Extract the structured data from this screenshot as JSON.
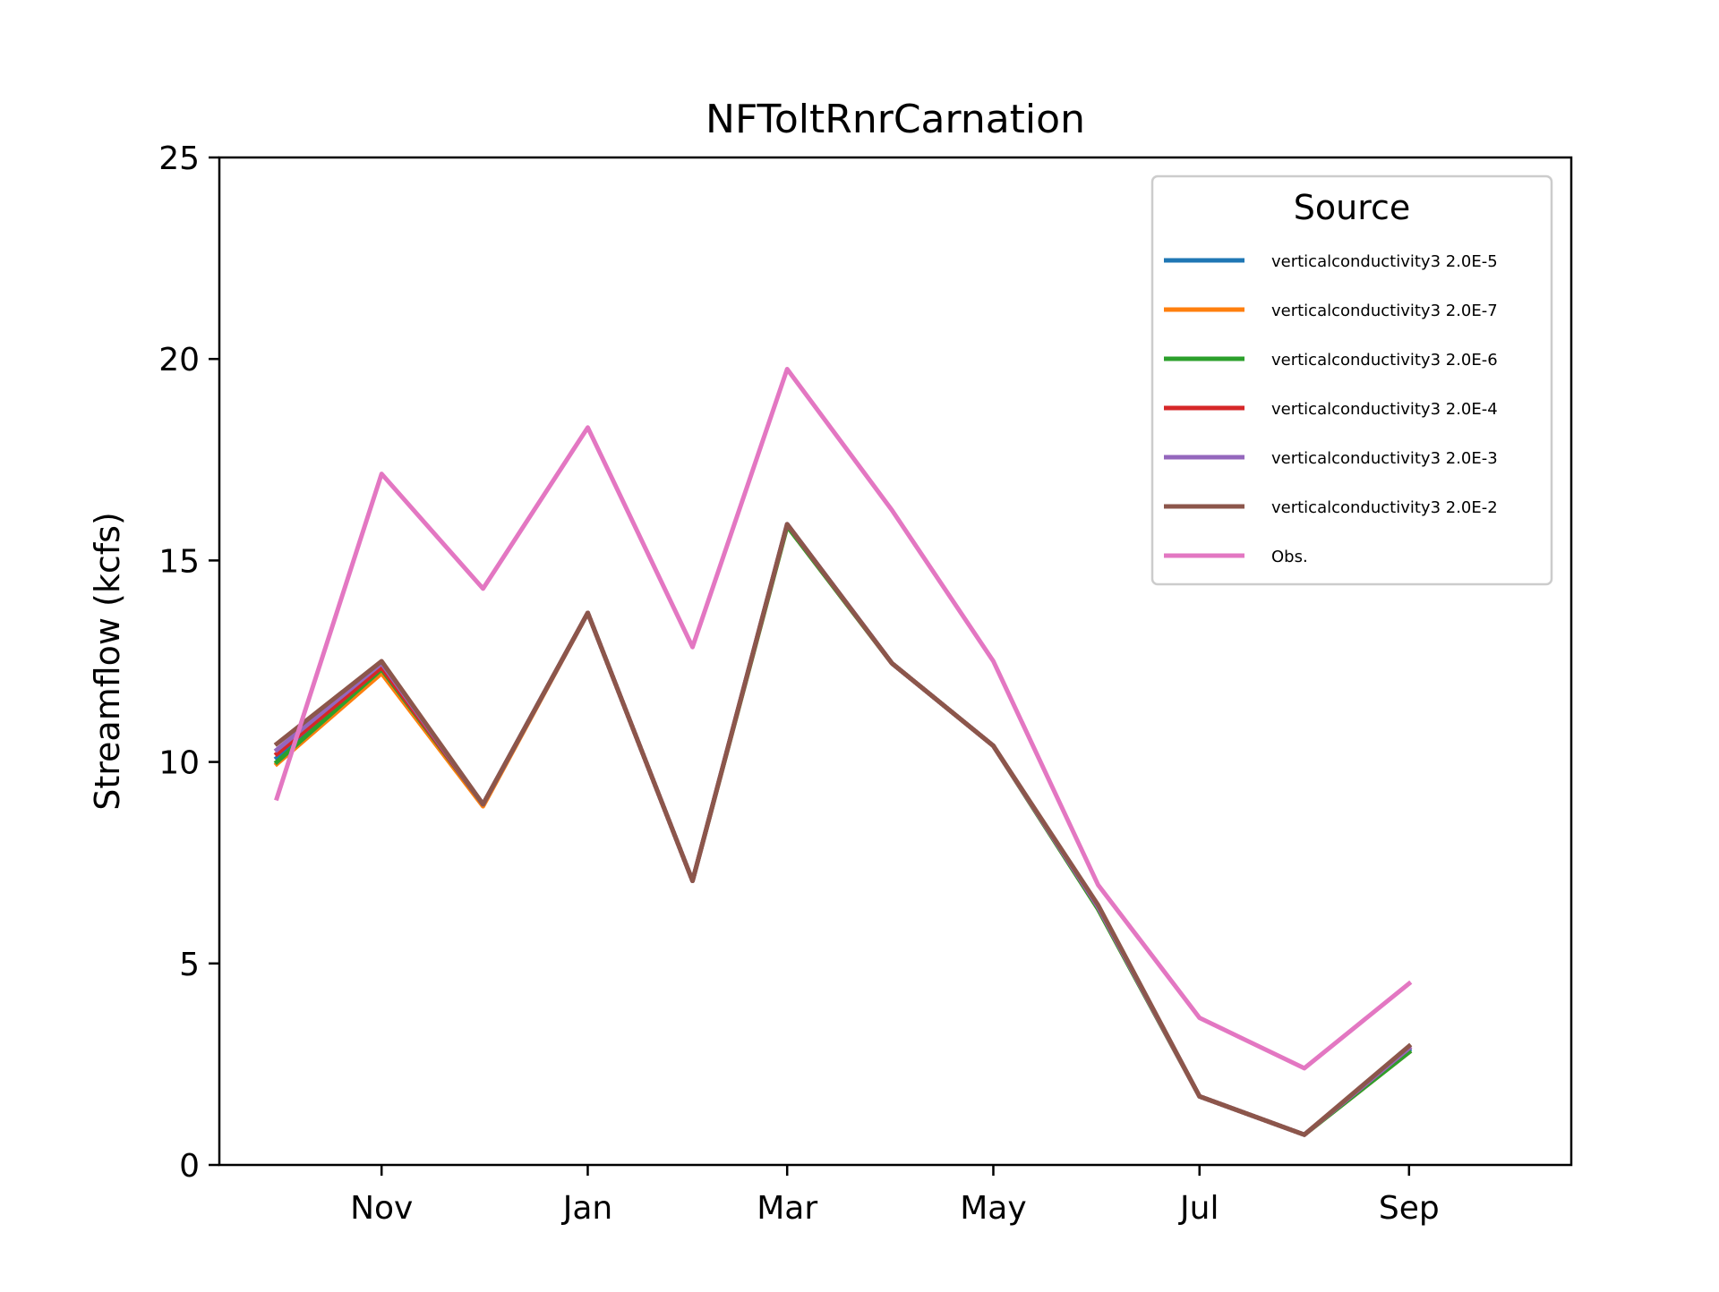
{
  "chart_data": {
    "type": "line",
    "title": "NFToltRnrCarnation",
    "xlabel": "",
    "ylabel": "Streamflow (kcfs)",
    "ylim": [
      0,
      25
    ],
    "yticks": [
      0,
      5,
      10,
      15,
      20,
      25
    ],
    "xlim": [
      "2000-09-14",
      "2001-10-19"
    ],
    "xticks": [
      {
        "label": "Nov",
        "date": "2000-11-01"
      },
      {
        "label": "Jan",
        "date": "2001-01-01"
      },
      {
        "label": "Mar",
        "date": "2001-03-01"
      },
      {
        "label": "May",
        "date": "2001-05-01"
      },
      {
        "label": "Jul",
        "date": "2001-07-01"
      },
      {
        "label": "Sep",
        "date": "2001-09-01"
      }
    ],
    "x": [
      "2000-10-01",
      "2000-11-01",
      "2000-12-01",
      "2001-01-01",
      "2001-02-01",
      "2001-03-01",
      "2001-04-01",
      "2001-05-01",
      "2001-06-01",
      "2001-07-01",
      "2001-08-01",
      "2001-09-01"
    ],
    "grid": false,
    "legend": {
      "title": "Source",
      "position": "top-right"
    },
    "series": [
      {
        "name": "verticalconductivity3 2.0E-5",
        "color": "#1f77b4",
        "values": [
          10.1,
          12.3,
          8.95,
          13.7,
          7.05,
          15.9,
          12.45,
          10.4,
          6.4,
          1.7,
          0.75,
          2.85
        ]
      },
      {
        "name": "verticalconductivity3 2.0E-7",
        "color": "#ff7f0e",
        "values": [
          9.95,
          12.2,
          8.9,
          13.7,
          7.05,
          15.85,
          12.45,
          10.4,
          6.35,
          1.7,
          0.75,
          2.8
        ]
      },
      {
        "name": "verticalconductivity3 2.0E-6",
        "color": "#2ca02c",
        "values": [
          10.0,
          12.3,
          8.95,
          13.7,
          7.05,
          15.85,
          12.45,
          10.4,
          6.35,
          1.7,
          0.75,
          2.8
        ]
      },
      {
        "name": "verticalconductivity3 2.0E-4",
        "color": "#d62728",
        "values": [
          10.2,
          12.35,
          8.95,
          13.7,
          7.05,
          15.9,
          12.45,
          10.4,
          6.4,
          1.7,
          0.75,
          2.9
        ]
      },
      {
        "name": "verticalconductivity3 2.0E-3",
        "color": "#9467bd",
        "values": [
          10.3,
          12.45,
          8.95,
          13.7,
          7.05,
          15.9,
          12.45,
          10.4,
          6.4,
          1.7,
          0.75,
          2.9
        ]
      },
      {
        "name": "verticalconductivity3 2.0E-2",
        "color": "#8c564b",
        "values": [
          10.45,
          12.5,
          8.95,
          13.7,
          7.05,
          15.9,
          12.45,
          10.4,
          6.45,
          1.7,
          0.75,
          2.95
        ]
      },
      {
        "name": "Obs.",
        "color": "#e377c2",
        "values": [
          9.1,
          17.15,
          14.3,
          18.3,
          12.85,
          19.75,
          16.25,
          12.5,
          6.95,
          3.65,
          2.4,
          4.5
        ]
      }
    ]
  }
}
